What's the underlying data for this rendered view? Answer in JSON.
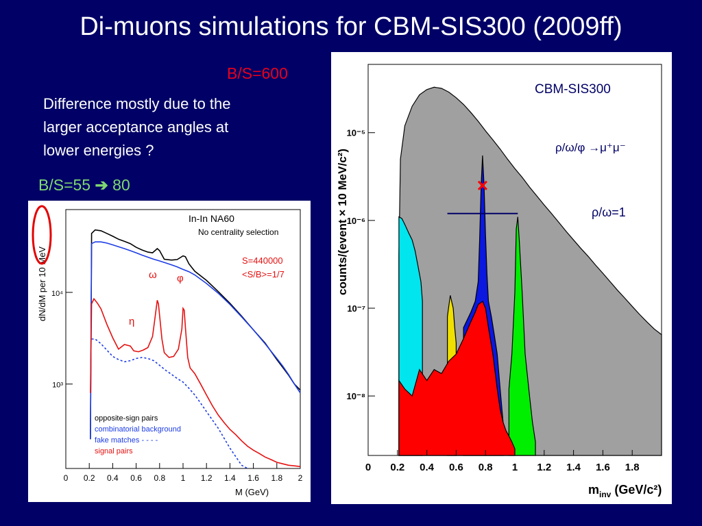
{
  "slide": {
    "title": "Di-muons simulations for CBM-SIS300 (2009ff)",
    "bs600": "B/S=600",
    "note_lines": [
      "Difference mostly due to the",
      "larger acceptance angles at",
      "lower energies ?"
    ],
    "bs55": "B/S=55",
    "bs55_arrow": "➔",
    "bs55_value": "80",
    "colors": {
      "background": "#000066",
      "accent_red": "#e8001c",
      "accent_green": "#7fd870"
    }
  },
  "chart_data": [
    {
      "type": "line",
      "scale": "log",
      "header": "In-In  NA60",
      "subheader": "No centrality selection",
      "info_lines": [
        "S=440000",
        "<S/B>=1/7"
      ],
      "ylabel": "dN/dM per 10 MeV",
      "xlabel": "M (GeV)",
      "x_ticks": [
        "0",
        "0.2",
        "0.4",
        "0.6",
        "0.8",
        "1",
        "1.2",
        "1.4",
        "1.6",
        "1.8",
        "2"
      ],
      "xlim": [
        0,
        2
      ],
      "y_ticks": [
        {
          "label": "10⁴",
          "value": 10000
        },
        {
          "label": "10³",
          "value": 1000
        }
      ],
      "ylim": [
        120,
        80000
      ],
      "peak_labels": [
        "ω",
        "φ",
        "η"
      ],
      "legend": [
        "opposite-sign pairs",
        "combinatorial background",
        "fake matches - - - -",
        "signal pairs"
      ],
      "series": [
        {
          "name": "opposite-sign pairs",
          "color": "#000000",
          "x": [
            0.21,
            0.22,
            0.25,
            0.3,
            0.35,
            0.4,
            0.45,
            0.5,
            0.55,
            0.6,
            0.65,
            0.7,
            0.74,
            0.78,
            0.8,
            0.84,
            0.9,
            0.95,
            1.0,
            1.02,
            1.05,
            1.1,
            1.2,
            1.3,
            1.4,
            1.5,
            1.6,
            1.7,
            1.8,
            1.85,
            1.9,
            1.95,
            2.0
          ],
          "y": [
            250,
            44000,
            48000,
            47000,
            44000,
            41000,
            38000,
            36000,
            34000,
            31000,
            29000,
            27500,
            27000,
            30000,
            28500,
            23000,
            22500,
            22800,
            25000,
            24500,
            20500,
            17000,
            13500,
            10200,
            7600,
            5500,
            3900,
            2800,
            1850,
            1520,
            1250,
            1000,
            860
          ]
        },
        {
          "name": "combinatorial background",
          "color": "#1c3ce6",
          "x": [
            0.21,
            0.22,
            0.25,
            0.3,
            0.35,
            0.4,
            0.45,
            0.5,
            0.55,
            0.6,
            0.65,
            0.7,
            0.75,
            0.8,
            0.85,
            0.9,
            0.95,
            1.0,
            1.05,
            1.1,
            1.2,
            1.3,
            1.4,
            1.5,
            1.6,
            1.7,
            1.8,
            1.85,
            1.9,
            1.95,
            2.0
          ],
          "y": [
            250,
            34000,
            35500,
            35500,
            34500,
            33000,
            31500,
            30000,
            28500,
            27000,
            25500,
            24200,
            23000,
            22000,
            21000,
            20000,
            19000,
            17800,
            16800,
            15500,
            12500,
            9800,
            7400,
            5400,
            3900,
            2750,
            1900,
            1570,
            1270,
            1000,
            800
          ]
        },
        {
          "name": "fake matches",
          "color": "#1c3ce6",
          "dashed": true,
          "x": [
            0.22,
            0.25,
            0.3,
            0.35,
            0.4,
            0.45,
            0.5,
            0.55,
            0.6,
            0.65,
            0.7,
            0.75,
            0.8,
            0.85,
            0.9,
            0.95,
            1.0,
            1.05,
            1.1,
            1.15,
            1.2,
            1.3,
            1.4,
            1.5,
            1.55
          ],
          "y": [
            3100,
            3100,
            2750,
            2350,
            2000,
            1850,
            1750,
            1800,
            1900,
            1950,
            1900,
            1800,
            1600,
            1420,
            1280,
            1150,
            1050,
            900,
            760,
            620,
            500,
            330,
            200,
            130,
            110
          ]
        },
        {
          "name": "signal pairs",
          "color": "#e41010",
          "x": [
            0.21,
            0.22,
            0.24,
            0.27,
            0.3,
            0.35,
            0.4,
            0.45,
            0.5,
            0.55,
            0.58,
            0.62,
            0.66,
            0.7,
            0.74,
            0.76,
            0.78,
            0.79,
            0.8,
            0.82,
            0.84,
            0.88,
            0.92,
            0.96,
            0.99,
            1.0,
            1.01,
            1.02,
            1.04,
            1.06,
            1.1,
            1.15,
            1.2,
            1.25,
            1.3,
            1.35,
            1.4,
            1.45,
            1.5,
            1.55,
            1.6,
            1.65,
            1.7,
            1.75,
            1.8,
            1.85,
            1.9,
            1.95,
            2.0
          ],
          "y": [
            800,
            7500,
            8500,
            7600,
            6600,
            4500,
            3200,
            2400,
            2700,
            2600,
            2300,
            2250,
            2350,
            2500,
            3300,
            5200,
            8200,
            7500,
            5600,
            3100,
            2200,
            1950,
            2000,
            2400,
            4000,
            6700,
            6400,
            4200,
            1950,
            1500,
            1300,
            1000,
            760,
            580,
            460,
            380,
            320,
            280,
            240,
            210,
            190,
            175,
            160,
            150,
            140,
            135,
            130,
            128,
            126
          ]
        }
      ]
    },
    {
      "type": "area",
      "scale": "log",
      "ylabel": "counts/(event × 10 MeV/c²)",
      "xlabel": "m",
      "xlabel_sub": "inv",
      "xlabel_unit": " (GeV/c²)",
      "x_ticks": [
        "0",
        "0.2",
        "0.4",
        "0.6",
        "0.8",
        "1",
        "1.2",
        "1.4",
        "1.6",
        "1.8"
      ],
      "xlim": [
        0,
        2.0
      ],
      "y_ticks": [
        {
          "label": "10⁻⁵",
          "value": 1e-05
        },
        {
          "label": "10⁻⁶",
          "value": 1e-06
        },
        {
          "label": "10⁻⁷",
          "value": 1e-07
        },
        {
          "label": "10⁻⁸",
          "value": 1e-08
        }
      ],
      "ylim": [
        2.1e-09,
        6e-05
      ],
      "label_experiment": "CBM-SIS300",
      "label_channel": "ρ/ω/φ →μ⁺μ⁻",
      "label_ratio": "ρ/ω=1",
      "marker_x": 0.78,
      "marker_y": 2.5e-06,
      "ratio_line_y": 1.2e-06,
      "ratio_line_x": [
        0.54,
        1.02
      ],
      "series": [
        {
          "name": "background",
          "color": "#a0a0a0",
          "x": [
            0.21,
            0.22,
            0.25,
            0.3,
            0.35,
            0.4,
            0.45,
            0.5,
            0.55,
            0.6,
            0.65,
            0.7,
            0.75,
            0.8,
            0.85,
            0.9,
            0.95,
            1.0,
            1.05,
            1.1,
            1.15,
            1.2,
            1.25,
            1.3,
            1.35,
            1.4,
            1.45,
            1.5,
            1.55,
            1.6,
            1.65,
            1.7,
            1.75,
            1.8,
            1.85,
            1.9,
            1.95,
            2.0
          ],
          "y": [
            4e-07,
            5e-06,
            1.2e-05,
            2e-05,
            2.7e-05,
            3.1e-05,
            3.3e-05,
            3.2e-05,
            2.9e-05,
            2.5e-05,
            2.1e-05,
            1.7e-05,
            1.35e-05,
            1.05e-05,
            8.3e-06,
            6.5e-06,
            5e-06,
            3.9e-06,
            3.1e-06,
            2.4e-06,
            1.9e-06,
            1.5e-06,
            1.2e-06,
            9.5e-07,
            7.5e-07,
            6e-07,
            4.8e-07,
            3.9e-07,
            3.1e-07,
            2.5e-07,
            2e-07,
            1.6e-07,
            1.3e-07,
            1.05e-07,
            8.5e-08,
            7e-08,
            5.8e-08,
            5e-08
          ]
        },
        {
          "name": "cyan component",
          "color": "#00e5ee",
          "x": [
            0.21,
            0.21,
            0.23,
            0.25,
            0.28,
            0.3,
            0.32,
            0.34,
            0.36,
            0.37,
            0.37
          ],
          "y": [
            2.1e-09,
            1.1e-06,
            1.05e-06,
            9e-07,
            7e-07,
            6e-07,
            4.5e-07,
            3e-07,
            2e-07,
            1.2e-07,
            2.1e-09
          ]
        },
        {
          "name": "yellow component",
          "color": "#f0e000",
          "x": [
            0.54,
            0.54,
            0.56,
            0.58,
            0.59,
            0.6,
            0.6
          ],
          "y": [
            2.1e-09,
            8e-08,
            1.4e-07,
            1e-07,
            6e-08,
            4e-08,
            2.1e-09
          ]
        },
        {
          "name": "blue component",
          "color": "#0a18e0",
          "x": [
            0.65,
            0.65,
            0.7,
            0.73,
            0.75,
            0.76,
            0.77,
            0.78,
            0.79,
            0.8,
            0.81,
            0.82,
            0.84,
            0.86,
            0.88,
            0.9,
            0.92,
            0.92
          ],
          "y": [
            2.1e-09,
            6e-08,
            9e-08,
            1.2e-07,
            2e-07,
            6e-07,
            2.5e-06,
            5.5e-06,
            2.5e-06,
            7e-07,
            2.5e-07,
            1.2e-07,
            8e-08,
            5e-08,
            3e-08,
            1.2e-08,
            5e-09,
            2.1e-09
          ]
        },
        {
          "name": "green component",
          "color": "#00ee00",
          "x": [
            0.96,
            0.96,
            0.98,
            1.0,
            1.01,
            1.02,
            1.03,
            1.05,
            1.07,
            1.1,
            1.12,
            1.14,
            1.14
          ],
          "y": [
            2.1e-09,
            1.2e-08,
            3e-08,
            1.5e-07,
            8e-07,
            1.1e-06,
            6e-07,
            1.5e-07,
            3e-08,
            1e-08,
            5e-09,
            3e-09,
            2.1e-09
          ]
        },
        {
          "name": "red component",
          "color": "#ff0000",
          "x": [
            0.21,
            0.21,
            0.25,
            0.3,
            0.35,
            0.4,
            0.45,
            0.5,
            0.55,
            0.6,
            0.65,
            0.7,
            0.73,
            0.75,
            0.78,
            0.8,
            0.82,
            0.85,
            0.88,
            0.9,
            0.92,
            0.94,
            0.96,
            0.98,
            1.0,
            1.0
          ],
          "y": [
            2.1e-09,
            1.5e-08,
            1.2e-08,
            1e-08,
            2e-08,
            1.5e-08,
            2e-08,
            1.8e-08,
            2.5e-08,
            3e-08,
            4.5e-08,
            7e-08,
            9e-08,
            1.1e-07,
            1.2e-07,
            1e-07,
            6e-08,
            3e-08,
            1.2e-08,
            7e-09,
            5e-09,
            4e-09,
            3.5e-09,
            3e-09,
            2.5e-09,
            2.1e-09
          ]
        }
      ]
    }
  ]
}
